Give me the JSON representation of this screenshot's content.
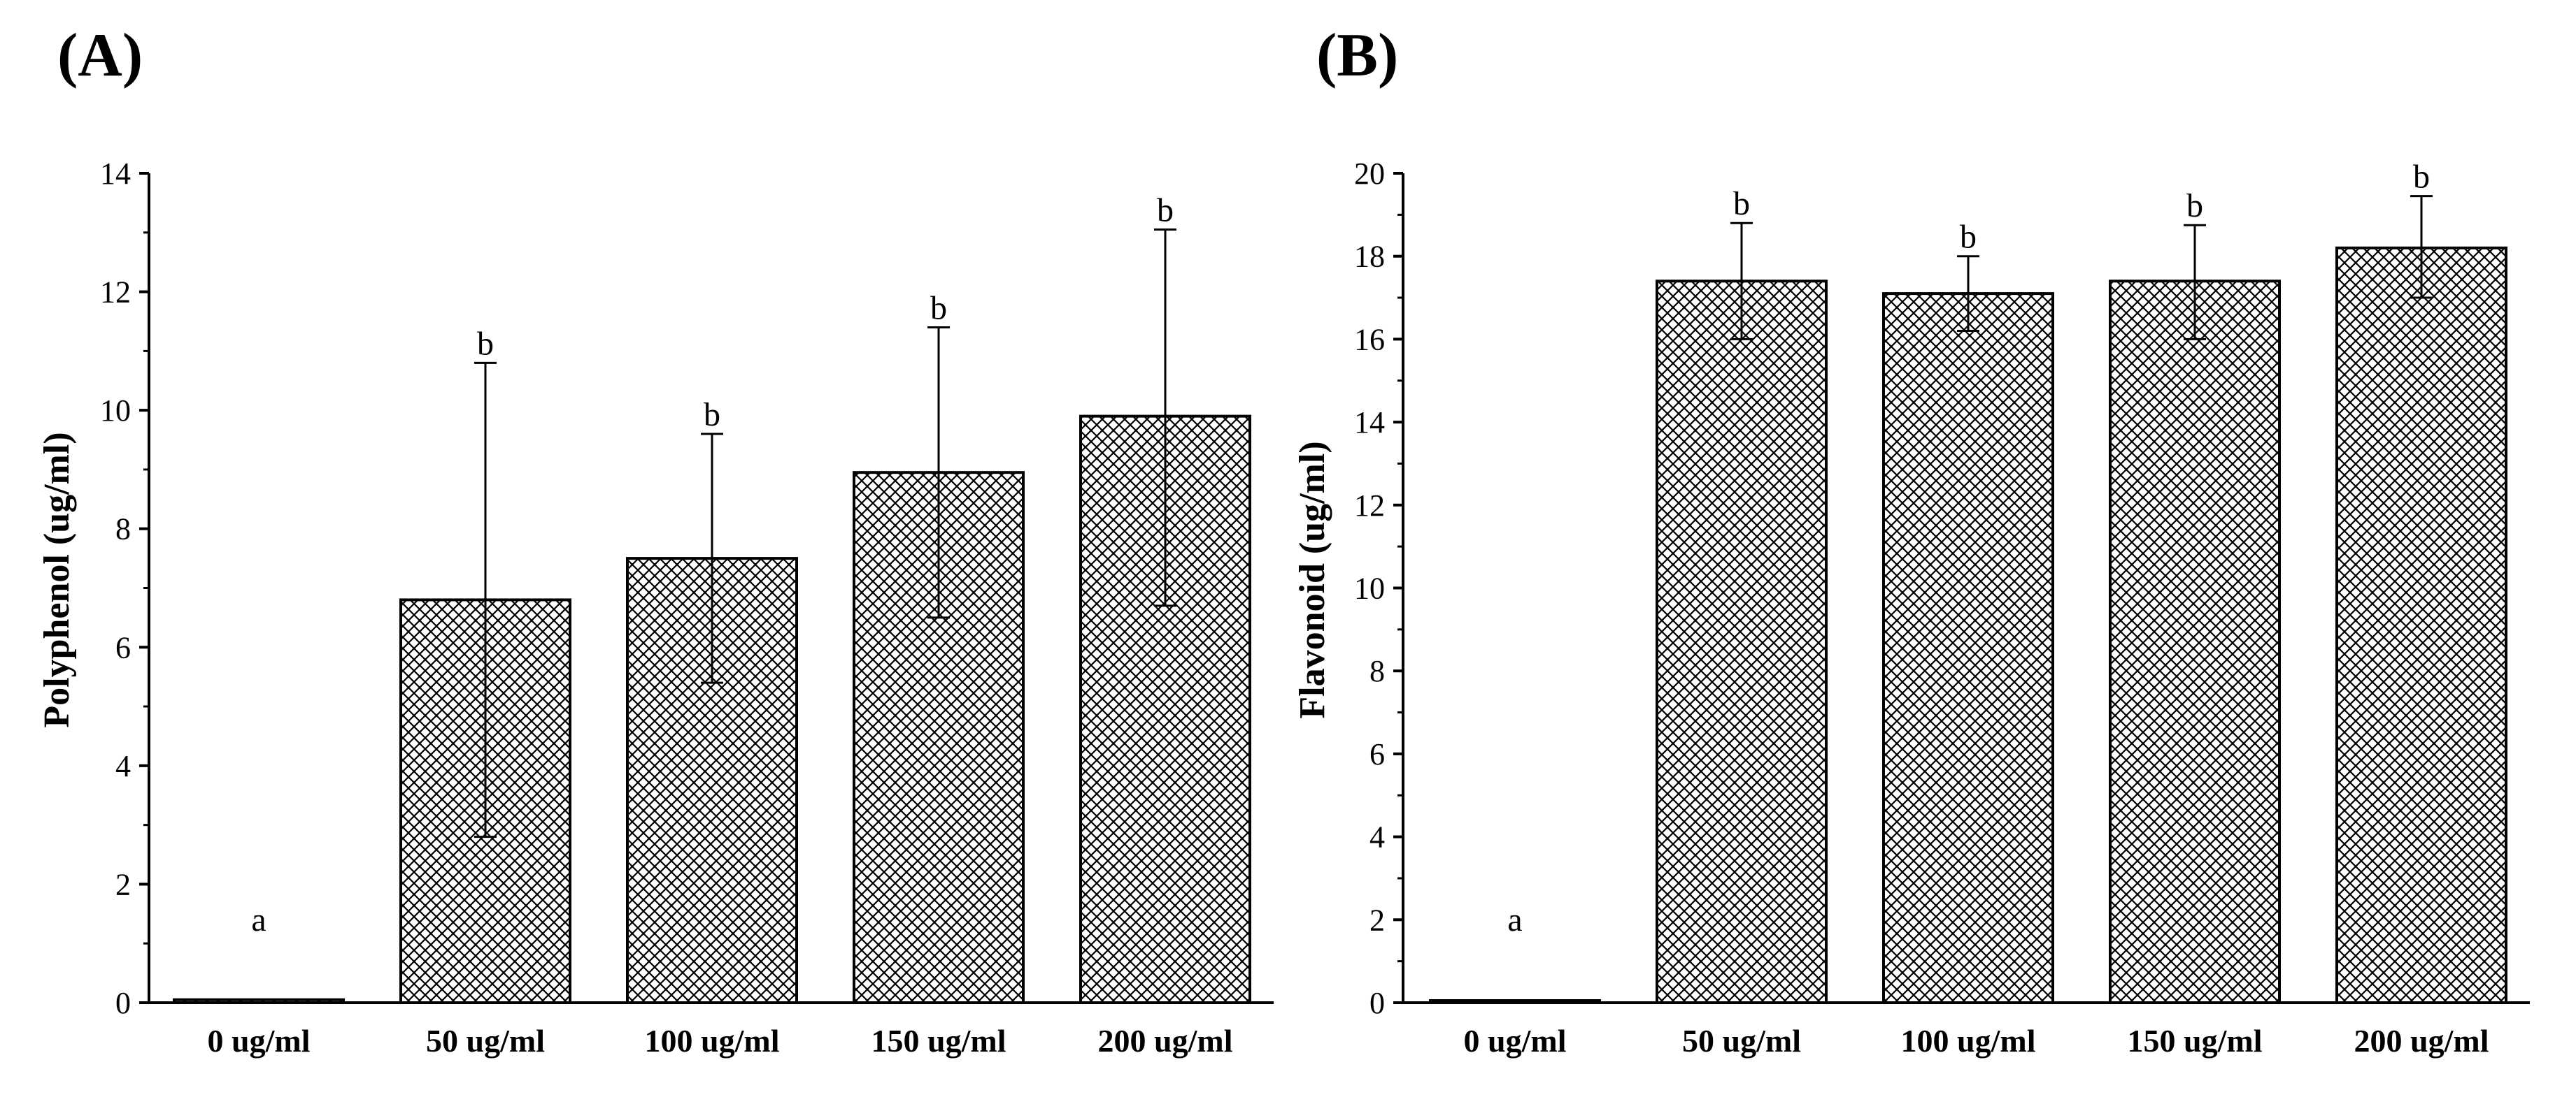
{
  "chart_data": [
    {
      "panel_label": "(A)",
      "type": "bar",
      "categories": [
        "0 ug/ml",
        "50 ug/ml",
        "100 ug/ml",
        "150 ug/ml",
        "200 ug/ml"
      ],
      "values": [
        0.05,
        6.8,
        7.5,
        8.95,
        9.9
      ],
      "error_low": [
        0.05,
        2.8,
        5.4,
        6.5,
        6.7
      ],
      "error_high": [
        0.05,
        10.8,
        9.6,
        11.4,
        13.05
      ],
      "significance": [
        "a",
        "b",
        "b",
        "b",
        "b"
      ],
      "ylabel": "Polyphenol (ug/ml)",
      "xlabel": "",
      "ylim": [
        0,
        14
      ],
      "yticks": [
        0,
        2,
        4,
        6,
        8,
        10,
        12,
        14
      ],
      "fill_pattern": "crosshatch"
    },
    {
      "panel_label": "(B)",
      "type": "bar",
      "categories": [
        "0 ug/ml",
        "50 ug/ml",
        "100 ug/ml",
        "150 ug/ml",
        "200 ug/ml"
      ],
      "values": [
        0.05,
        17.4,
        17.1,
        17.4,
        18.2
      ],
      "error_low": [
        0.05,
        16.0,
        16.2,
        16.0,
        17.0
      ],
      "error_high": [
        0.05,
        18.8,
        18.0,
        18.75,
        19.45
      ],
      "significance": [
        "a",
        "b",
        "b",
        "b",
        "b"
      ],
      "ylabel": "Flavonoid (ug/ml)",
      "xlabel": "",
      "ylim": [
        0,
        20
      ],
      "yticks": [
        0,
        2,
        4,
        6,
        8,
        10,
        12,
        14,
        16,
        18,
        20
      ],
      "fill_pattern": "crosshatch"
    }
  ]
}
